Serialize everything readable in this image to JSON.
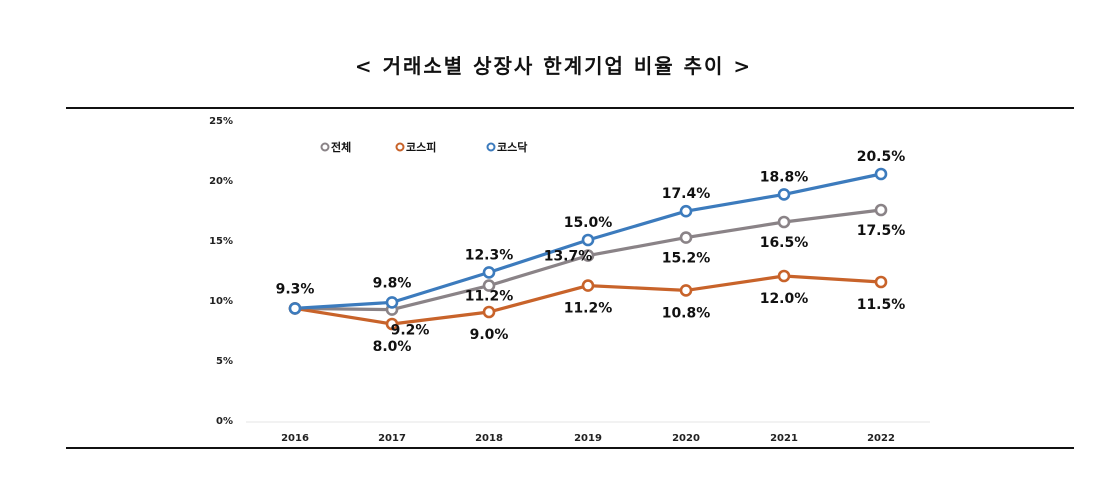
{
  "title": "< 거래소별 상장사 한계기업 비율 추이 >",
  "chart_data": {
    "type": "line",
    "title": "< 거래소별 상장사 한계기업 비율 추이 >",
    "x": [
      "2016",
      "2017",
      "2018",
      "2019",
      "2020",
      "2021",
      "2022"
    ],
    "ylim": [
      0,
      25
    ],
    "yticks": [
      "0%",
      "5%",
      "10%",
      "15%",
      "20%",
      "25%"
    ],
    "grid": false,
    "legend_position": "top-left",
    "series": [
      {
        "name": "전체",
        "color": "#8a8387",
        "values": [
          9.3,
          9.2,
          11.2,
          13.7,
          15.2,
          16.5,
          17.5
        ],
        "labels": [
          "",
          "9.2%",
          "11.2%",
          "13.7%",
          "15.2%",
          "16.5%",
          "17.5%"
        ]
      },
      {
        "name": "코스피",
        "color": "#c8632a",
        "values": [
          9.3,
          8.0,
          9.0,
          11.2,
          10.8,
          12.0,
          11.5
        ],
        "labels": [
          "",
          "8.0%",
          "9.0%",
          "11.2%",
          "10.8%",
          "12.0%",
          "11.5%"
        ]
      },
      {
        "name": "코스닥",
        "color": "#3c7bbd",
        "values": [
          9.3,
          9.8,
          12.3,
          15.0,
          17.4,
          18.8,
          20.5
        ],
        "labels": [
          "9.3%",
          "9.8%",
          "12.3%",
          "15.0%",
          "17.4%",
          "18.8%",
          "20.5%"
        ]
      }
    ]
  }
}
